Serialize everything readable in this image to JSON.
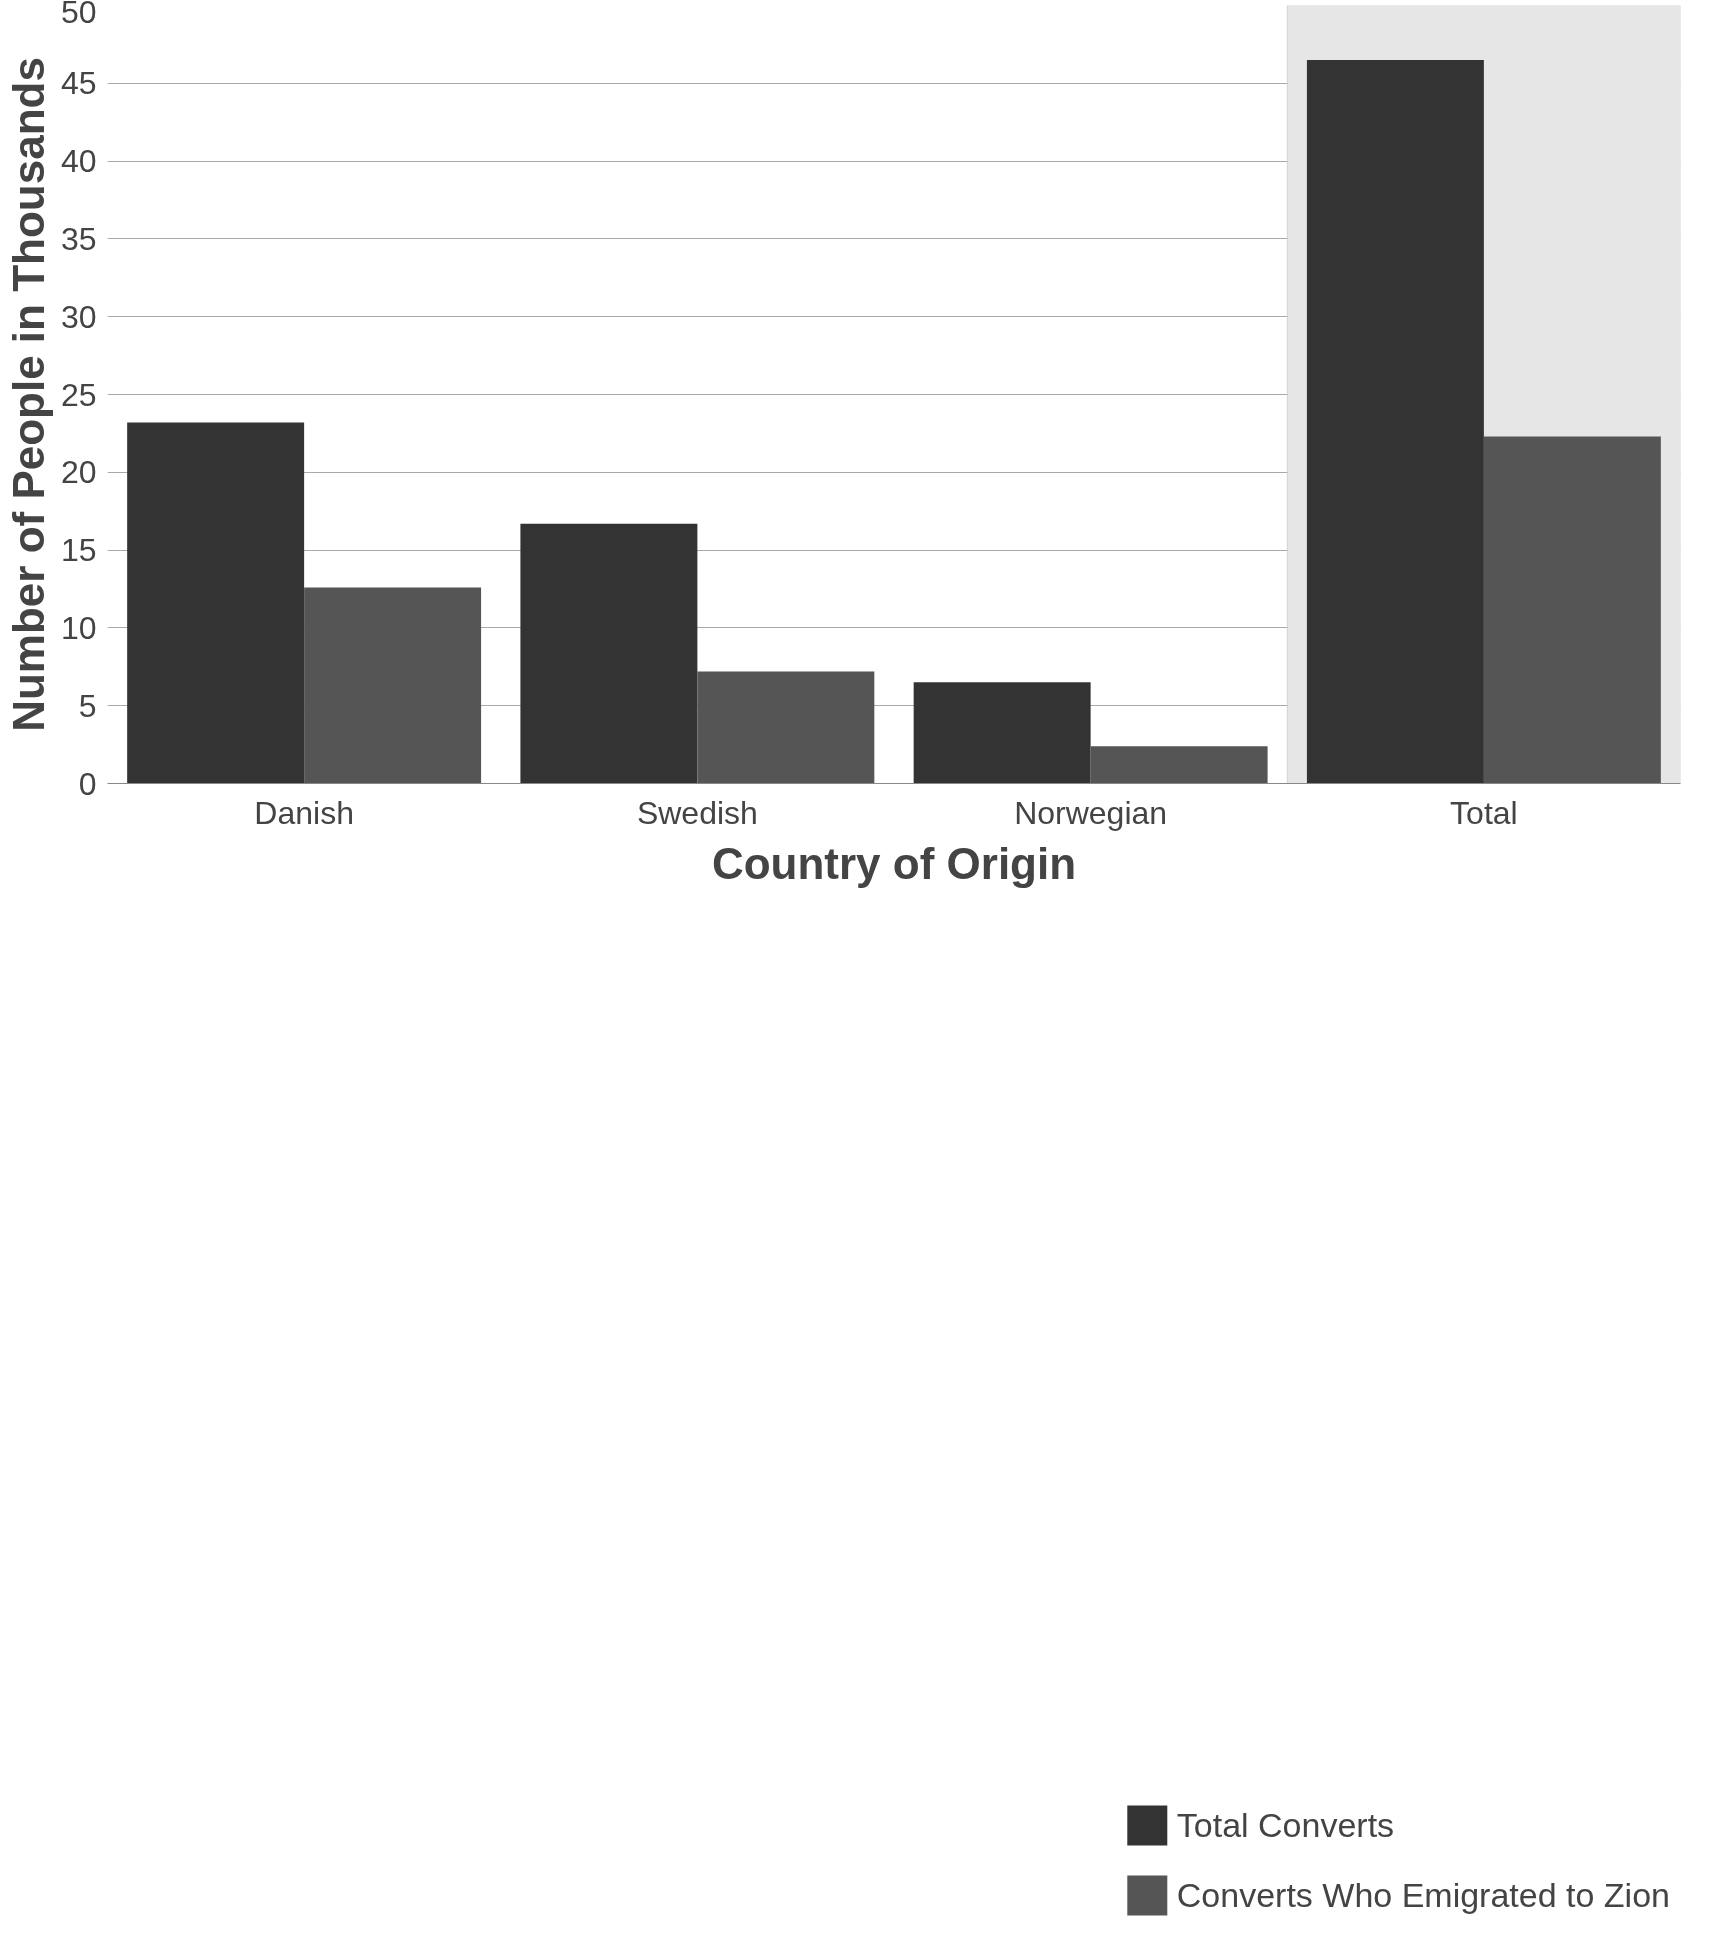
{
  "chart_data": {
    "type": "bar",
    "xlabel": "Country of Origin",
    "ylabel": "Number of People in Thousands",
    "categories": [
      "Danish",
      "Swedish",
      "Norwegian",
      "Total"
    ],
    "series": [
      {
        "name": "Total Converts",
        "color": "#333333",
        "values": [
          23.2,
          16.7,
          6.5,
          46.5
        ]
      },
      {
        "name": "Converts Who Emigrated to Zion",
        "color": "#555555",
        "values": [
          12.6,
          7.2,
          2.4,
          22.3
        ]
      }
    ],
    "ylim": [
      0,
      50
    ],
    "yticks": [
      0,
      5,
      10,
      15,
      20,
      25,
      30,
      35,
      40,
      45,
      50
    ],
    "grid": "y",
    "legend": "bottom right",
    "bands": [
      {
        "axis": "x",
        "from": "Total",
        "to": "Total",
        "color": "#e6e6e6"
      }
    ]
  }
}
